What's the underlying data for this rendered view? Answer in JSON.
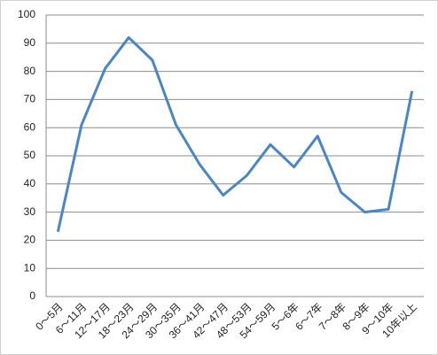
{
  "chart_data": {
    "type": "line",
    "categories": [
      "0～5月",
      "6～11月",
      "12～17月",
      "18～23月",
      "24～29月",
      "30～35月",
      "36～41月",
      "42～47月",
      "48～53月",
      "54～59月",
      "5～6年",
      "6～7年",
      "7～8年",
      "8～9年",
      "9～10年",
      "10年以上"
    ],
    "values": [
      23,
      61,
      81,
      92,
      84,
      61,
      47,
      36,
      43,
      54,
      46,
      57,
      37,
      30,
      31,
      73
    ],
    "color": "#4a86c5",
    "ylim": [
      0,
      100
    ],
    "yticks": [
      0,
      10,
      20,
      30,
      40,
      50,
      60,
      70,
      80,
      90,
      100
    ],
    "grid": true
  }
}
